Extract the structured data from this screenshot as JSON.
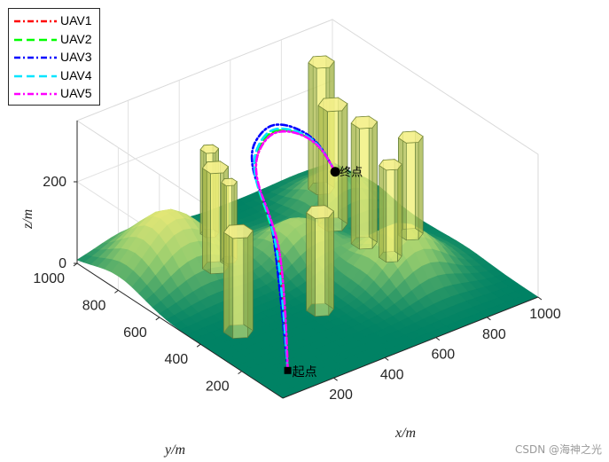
{
  "chart_data": {
    "type": "3d-surface-with-trajectories",
    "xlabel": "x/m",
    "ylabel": "y/m",
    "zlabel": "z/m",
    "xlim": [
      0,
      1000
    ],
    "ylim": [
      0,
      1000
    ],
    "zlim": [
      0,
      350
    ],
    "xticks": [
      {
        "value": 200,
        "label": "200"
      },
      {
        "value": 400,
        "label": "400"
      },
      {
        "value": 600,
        "label": "600"
      },
      {
        "value": 800,
        "label": "800"
      },
      {
        "value": 1000,
        "label": "1000"
      }
    ],
    "yticks": [
      {
        "value": 200,
        "label": "200"
      },
      {
        "value": 400,
        "label": "400"
      },
      {
        "value": 600,
        "label": "600"
      },
      {
        "value": 800,
        "label": "800"
      },
      {
        "value": 1000,
        "label": "1000"
      }
    ],
    "zticks": [
      {
        "value": 0,
        "label": "0"
      },
      {
        "value": 200,
        "label": "200"
      }
    ],
    "series": [
      {
        "name": "UAV1",
        "color": "#ff0000",
        "dash": "7,3,2,3"
      },
      {
        "name": "UAV2",
        "color": "#00ff00",
        "dash": "9,5"
      },
      {
        "name": "UAV3",
        "color": "#0000ff",
        "dash": "7,3,2,3"
      },
      {
        "name": "UAV4",
        "color": "#00e5ff",
        "dash": "9,5"
      },
      {
        "name": "UAV5",
        "color": "#ff00ff",
        "dash": "7,3,2,3"
      }
    ],
    "start_label": "起点",
    "end_label": "终点",
    "hills": [
      {
        "x": 200,
        "y": 800,
        "h": 140,
        "s": 170
      },
      {
        "x": 750,
        "y": 350,
        "h": 120,
        "s": 150
      },
      {
        "x": 560,
        "y": 620,
        "h": 90,
        "s": 130
      },
      {
        "x": 850,
        "y": 800,
        "h": 80,
        "s": 120
      }
    ],
    "obstacles": [
      {
        "x": 140,
        "y": 390,
        "r": 45,
        "h": 245
      },
      {
        "x": 420,
        "y": 340,
        "r": 42,
        "h": 240
      },
      {
        "x": 300,
        "y": 700,
        "r": 40,
        "h": 260
      },
      {
        "x": 430,
        "y": 890,
        "r": 28,
        "h": 210
      },
      {
        "x": 370,
        "y": 720,
        "r": 24,
        "h": 200
      },
      {
        "x": 760,
        "y": 700,
        "r": 45,
        "h": 300
      },
      {
        "x": 770,
        "y": 560,
        "r": 40,
        "h": 300
      },
      {
        "x": 760,
        "y": 420,
        "r": 35,
        "h": 245
      },
      {
        "x": 920,
        "y": 520,
        "r": 38,
        "h": 240
      },
      {
        "x": 860,
        "y": 880,
        "r": 40,
        "h": 320
      }
    ],
    "start": {
      "x": 100,
      "y": 100,
      "z": 10
    },
    "goal": {
      "x": 850,
      "y": 800,
      "z": 80
    },
    "paths": [
      {
        "name": "UAV1",
        "points": [
          [
            100,
            100,
            10
          ],
          [
            150,
            170,
            80
          ],
          [
            200,
            260,
            200
          ],
          [
            230,
            330,
            250
          ],
          [
            320,
            550,
            300
          ],
          [
            460,
            650,
            320
          ],
          [
            610,
            720,
            270
          ],
          [
            750,
            760,
            190
          ],
          [
            850,
            800,
            80
          ]
        ]
      },
      {
        "name": "UAV2",
        "points": [
          [
            100,
            100,
            10
          ],
          [
            140,
            165,
            90
          ],
          [
            190,
            250,
            210
          ],
          [
            225,
            335,
            255
          ],
          [
            315,
            545,
            305
          ],
          [
            455,
            652,
            322
          ],
          [
            605,
            722,
            272
          ],
          [
            748,
            762,
            192
          ],
          [
            850,
            800,
            80
          ]
        ]
      },
      {
        "name": "UAV3",
        "points": [
          [
            100,
            100,
            10
          ],
          [
            120,
            150,
            120
          ],
          [
            160,
            230,
            230
          ],
          [
            210,
            320,
            285
          ],
          [
            310,
            560,
            330
          ],
          [
            460,
            660,
            335
          ],
          [
            600,
            725,
            285
          ],
          [
            745,
            762,
            200
          ],
          [
            850,
            800,
            80
          ]
        ]
      },
      {
        "name": "UAV4",
        "points": [
          [
            100,
            100,
            10
          ],
          [
            135,
            160,
            100
          ],
          [
            180,
            245,
            220
          ],
          [
            222,
            330,
            262
          ],
          [
            314,
            550,
            310
          ],
          [
            457,
            655,
            326
          ],
          [
            603,
            723,
            276
          ],
          [
            747,
            761,
            195
          ],
          [
            850,
            800,
            80
          ]
        ]
      },
      {
        "name": "UAV5",
        "points": [
          [
            100,
            100,
            10
          ],
          [
            155,
            175,
            85
          ],
          [
            205,
            262,
            205
          ],
          [
            235,
            335,
            252
          ],
          [
            322,
            552,
            302
          ],
          [
            462,
            651,
            318
          ],
          [
            612,
            721,
            268
          ],
          [
            752,
            761,
            188
          ],
          [
            850,
            800,
            80
          ]
        ]
      }
    ]
  },
  "watermark": "CSDN @海神之光"
}
